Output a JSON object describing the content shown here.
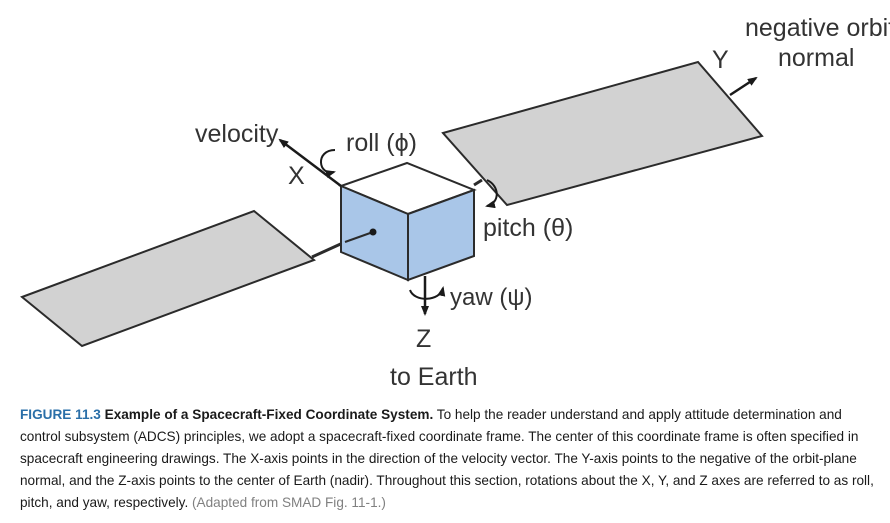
{
  "figure": {
    "labels": {
      "velocity": "velocity",
      "x_axis": "X",
      "roll": "roll (ϕ)",
      "pitch": "pitch (θ)",
      "yaw": "yaw (ψ)",
      "z_axis": "Z",
      "to_earth": "to Earth",
      "y_axis": "Y",
      "negative_orbit": "negative orbit",
      "normal": "normal"
    },
    "colors": {
      "panel_fill": "#d2d2d2",
      "cube_front": "#a9c6e8",
      "cube_top": "#ffffff",
      "outline": "#2b2b2b"
    }
  },
  "caption": {
    "figure_number": "FIGURE 11.3",
    "title": "Example of a Spacecraft-Fixed Coordinate System.",
    "body": "To help the reader understand and apply attitude determination and control subsystem (ADCS) principles, we adopt a spacecraft-fixed coordinate frame. The center of this coordinate frame is often specified in spacecraft engineering drawings. The X-axis points in the direction of the velocity vector. The Y-axis points to the negative of the orbit-plane normal, and the Z-axis points to the center of Earth (nadir). Throughout this section, rotations about the X, Y, and Z axes are referred to as roll, pitch, and yaw, respectively.",
    "source": "(Adapted from SMAD Fig. 11-1.)"
  }
}
